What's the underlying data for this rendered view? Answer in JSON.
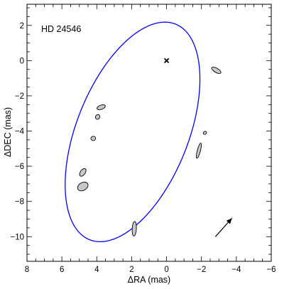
{
  "chart_data": {
    "type": "scatter",
    "title": "HD 24546",
    "xlabel": "ΔRA (mas)",
    "ylabel": "ΔDEC (mas)",
    "xlim": [
      8,
      -6
    ],
    "ylim": [
      -11.4,
      3.2
    ],
    "x_ticks": [
      8,
      6,
      4,
      2,
      0,
      -2,
      -4,
      -6
    ],
    "x_tick_labels": [
      "8",
      "6",
      "4",
      "2",
      "0",
      "−2",
      "−4",
      "−6"
    ],
    "y_ticks": [
      2,
      0,
      -2,
      -4,
      -6,
      -8,
      -10
    ],
    "y_tick_labels": [
      "2",
      "0",
      "−2",
      "−4",
      "−6",
      "−8",
      "−10"
    ],
    "grid": false,
    "primary_marker": {
      "x": 0.0,
      "y": 0.0,
      "symbol": "×"
    },
    "orbit": {
      "center": [
        1.95,
        -4.05
      ],
      "semi_major": 6.6,
      "semi_minor": 3.2,
      "major_axis_angle_deg": 68,
      "color": "#0000ff"
    },
    "observations": [
      {
        "x": -2.85,
        "y": -0.55,
        "rx": 0.3,
        "ry": 0.12,
        "angle_deg": -30
      },
      {
        "x": 3.75,
        "y": -2.65,
        "rx": 0.25,
        "ry": 0.12,
        "angle_deg": 20
      },
      {
        "x": 3.95,
        "y": -3.2,
        "rx": 0.14,
        "ry": 0.12,
        "angle_deg": 60
      },
      {
        "x": 4.2,
        "y": -4.42,
        "rx": 0.14,
        "ry": 0.12,
        "angle_deg": 0
      },
      {
        "x": -2.2,
        "y": -4.1,
        "rx": 0.1,
        "ry": 0.08,
        "angle_deg": 30
      },
      {
        "x": -1.85,
        "y": -5.12,
        "rx": 0.45,
        "ry": 0.09,
        "angle_deg": 75
      },
      {
        "x": 4.8,
        "y": -6.35,
        "rx": 0.25,
        "ry": 0.14,
        "angle_deg": 55
      },
      {
        "x": 4.8,
        "y": -7.15,
        "rx": 0.32,
        "ry": 0.22,
        "angle_deg": 30
      },
      {
        "x": 1.85,
        "y": -9.55,
        "rx": 0.42,
        "ry": 0.12,
        "angle_deg": 87
      }
    ],
    "arrow": {
      "from": [
        -2.8,
        -10.0
      ],
      "to": [
        -3.75,
        -8.95
      ]
    },
    "colors": {
      "orbit": "#0000ff",
      "ellipse_fill": "#c8c8c8",
      "ink": "#000000"
    }
  }
}
